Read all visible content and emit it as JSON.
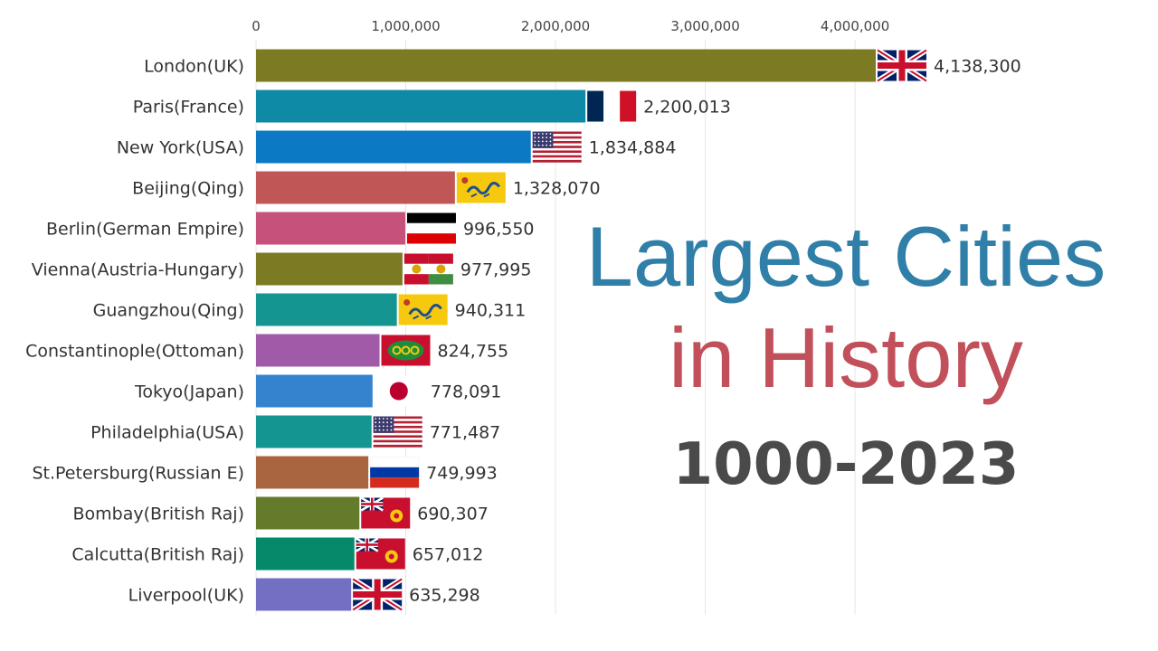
{
  "chart_data": {
    "type": "bar",
    "orientation": "horizontal",
    "categories": [
      "London(UK)",
      "Paris(France)",
      "New York(USA)",
      "Beijing(Qing)",
      "Berlin(German Empire)",
      "Vienna(Austria-Hungary)",
      "Guangzhou(Qing)",
      "Constantinople(Ottoman)",
      "Tokyo(Japan)",
      "Philadelphia(USA)",
      "St.Petersburg(Russian E)",
      "Bombay(British Raj)",
      "Calcutta(British Raj)",
      "Liverpool(UK)"
    ],
    "values": [
      4138300,
      2200013,
      1834884,
      1328070,
      996550,
      977995,
      940311,
      824755,
      778091,
      771487,
      749993,
      690307,
      657012,
      635298
    ],
    "value_labels": [
      "4,138,300",
      "2,200,013",
      "1,834,884",
      "1,328,070",
      "996,550",
      "977,995",
      "940,311",
      "824,755",
      "778,091",
      "771,487",
      "749,993",
      "690,307",
      "657,012",
      "635,298"
    ],
    "colors": [
      "#7d7a24",
      "#0e8aa6",
      "#0c79c4",
      "#c05656",
      "#c6517a",
      "#7d7a24",
      "#149591",
      "#a15aa8",
      "#3582cf",
      "#149591",
      "#a8653f",
      "#647b2b",
      "#06896a",
      "#7370c4"
    ],
    "flags": [
      "uk-flag",
      "france-flag",
      "usa-flag",
      "qing-flag",
      "german-empire-flag",
      "austria-hungary-flag",
      "qing-flag",
      "ottoman-flag",
      "japan-flag",
      "usa-flag",
      "russia-flag",
      "british-raj-flag",
      "british-raj-flag",
      "uk-flag"
    ],
    "xticks": [
      0,
      1000000,
      2000000,
      3000000,
      4000000
    ],
    "xtick_labels": [
      "0",
      "1,000,000",
      "2,000,000",
      "3,000,000",
      "4,000,000"
    ],
    "xlim": [
      0,
      4138300
    ],
    "grid": true,
    "axis_position": "top",
    "title": ""
  },
  "title_overlay": {
    "line1": "Largest Cities",
    "line2": "in History",
    "years": "1000-2023"
  }
}
